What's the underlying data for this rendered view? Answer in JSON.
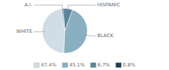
{
  "chart_data": {
    "type": "pie",
    "categories": [
      "WHITE",
      "BLACK",
      "HISPANIC",
      "A.I."
    ],
    "values": [
      47.4,
      45.1,
      6.7,
      0.8
    ],
    "value_labels": [
      "47.4%",
      "45.1%",
      "6.7%",
      "0.8%"
    ],
    "colors": [
      "#d0dde6",
      "#8aafc0",
      "#5a849a",
      "#1e3f54"
    ],
    "legend": "bottom"
  }
}
